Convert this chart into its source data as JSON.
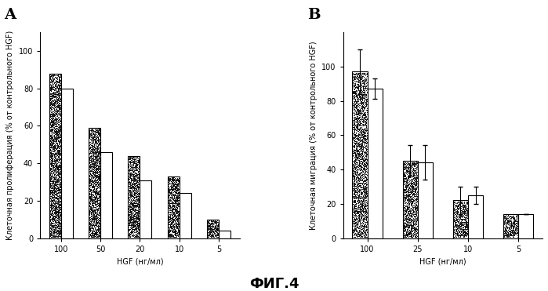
{
  "panel_A": {
    "label": "A",
    "categories": [
      "100",
      "50",
      "20",
      "10",
      "5"
    ],
    "dark_values": [
      88,
      59,
      44,
      33,
      10
    ],
    "white_values": [
      80,
      46,
      31,
      24,
      4
    ],
    "ylabel": "Клеточная пролиферация (% от контрольного HGF)",
    "xlabel": "HGF (нг/мл)",
    "ylim": [
      0,
      110
    ],
    "yticks": [
      0,
      20,
      40,
      60,
      80,
      100
    ]
  },
  "panel_B": {
    "label": "B",
    "categories": [
      "100",
      "25",
      "10",
      "5"
    ],
    "dark_values": [
      97,
      45,
      22,
      14
    ],
    "white_values": [
      87,
      44,
      25,
      14
    ],
    "dark_errors": [
      13,
      9,
      8,
      0
    ],
    "white_errors": [
      6,
      10,
      5,
      0
    ],
    "ylabel": "Клеточная миграция (% от контрольного HGF)",
    "xlabel": "HGF (нг/мл)",
    "ylim": [
      0,
      120
    ],
    "yticks": [
      0,
      20,
      40,
      60,
      80,
      100
    ]
  },
  "caption": "ФИГ.4",
  "dark_color": "#333333",
  "white_color": "#ffffff",
  "bar_edge_color": "#000000",
  "bar_width": 0.3,
  "background_color": "#ffffff",
  "label_fontsize": 14,
  "axis_fontsize": 7,
  "tick_fontsize": 7,
  "caption_fontsize": 13
}
